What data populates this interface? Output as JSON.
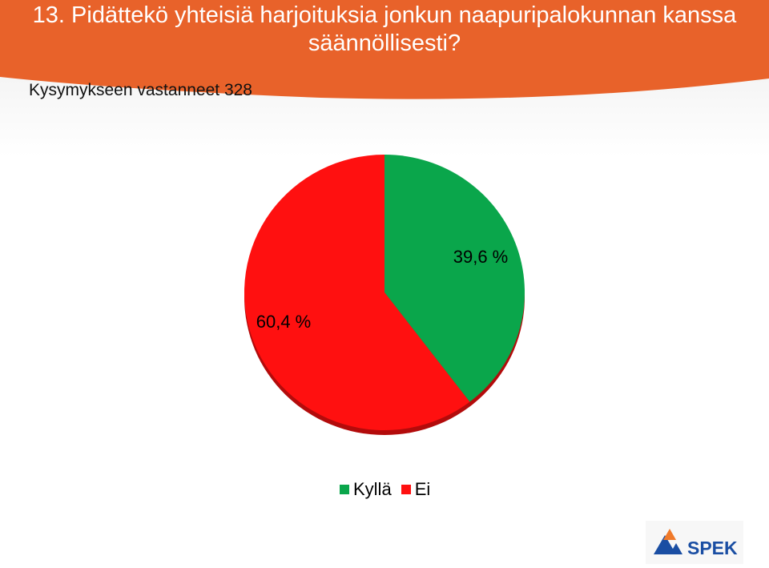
{
  "header": {
    "title": "13. Pidättekö yhteisiä harjoituksia jonkun naapuripalokunnan kanssa säännöllisesti?",
    "subtitle": "Kysymykseen vastanneet 328"
  },
  "colors": {
    "header": "#e8622a",
    "header_light": "#f2915e",
    "series_kylla": "#0aa64b",
    "series_ei": "#ff1010",
    "logo_blue": "#1a4ea3",
    "logo_orange": "#f07a2a"
  },
  "chart_data": {
    "type": "pie",
    "categories": [
      "Kyllä",
      "Ei"
    ],
    "values": [
      39.6,
      60.4
    ],
    "labels": [
      "39,6 %",
      "60,4 %"
    ],
    "legend_position": "bottom"
  },
  "logo": {
    "text": "SPEK",
    "icon": "spek-triangle-logo"
  }
}
